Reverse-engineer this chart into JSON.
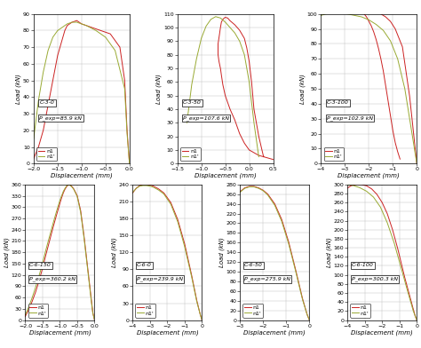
{
  "subplots": [
    {
      "label": "C-3-0",
      "p_exp": "P_exp=85.9 kN",
      "xlim": [
        -2,
        0
      ],
      "xticks": [
        -2,
        -1.5,
        -1,
        -0.5,
        0
      ],
      "ylim": [
        0,
        90
      ],
      "yticks": [
        0,
        10,
        20,
        30,
        40,
        50,
        60,
        70,
        80,
        90
      ],
      "n1_x": [
        0,
        -0.05,
        -0.1,
        -0.2,
        -0.4,
        -0.6,
        -0.8,
        -0.9,
        -1.0,
        -1.05,
        -1.1,
        -1.15,
        -1.2,
        -1.25,
        -1.3,
        -1.35,
        -1.4,
        -1.5,
        -1.6,
        -1.7,
        -1.8,
        -1.9,
        -2.0
      ],
      "n1_y": [
        0,
        20,
        50,
        70,
        78,
        80,
        82,
        83,
        84,
        85,
        86,
        85.5,
        85,
        84,
        83,
        80,
        75,
        65,
        50,
        35,
        20,
        10,
        3
      ],
      "n1p_x": [
        0,
        -0.05,
        -0.1,
        -0.3,
        -0.5,
        -0.7,
        -0.9,
        -1.0,
        -1.1,
        -1.2,
        -1.3,
        -1.4,
        -1.5,
        -1.6,
        -1.7,
        -1.8,
        -1.9,
        -2.0
      ],
      "n1p_y": [
        0,
        18,
        45,
        68,
        76,
        80,
        83,
        84,
        85,
        85,
        84,
        82,
        80,
        76,
        68,
        55,
        38,
        15
      ]
    },
    {
      "label": "C-3-50",
      "p_exp": "P_exp=107.6 kN",
      "xlim": [
        -1.5,
        0.5
      ],
      "xticks": [
        -1.5,
        -1,
        -0.5,
        0,
        0.5
      ],
      "ylim": [
        0,
        110
      ],
      "yticks": [
        0,
        10,
        20,
        30,
        40,
        50,
        60,
        70,
        80,
        90,
        100,
        110
      ],
      "n1_x": [
        0.3,
        0.2,
        0.1,
        0.05,
        0,
        -0.05,
        -0.1,
        -0.2,
        -0.3,
        -0.4,
        -0.45,
        -0.5,
        -0.52,
        -0.55,
        -0.58,
        -0.6,
        -0.62,
        -0.65,
        -0.65,
        -0.63,
        -0.6,
        -0.58,
        -0.55,
        -0.5,
        -0.4,
        -0.3,
        -0.2,
        -0.1,
        0,
        0.1,
        0.2,
        0.3,
        0.4,
        0.5
      ],
      "n1_y": [
        5,
        20,
        40,
        60,
        75,
        85,
        92,
        98,
        102,
        105,
        107,
        107.5,
        107,
        106,
        104,
        100,
        95,
        88,
        80,
        75,
        70,
        65,
        58,
        50,
        40,
        32,
        22,
        15,
        10,
        8,
        6,
        5,
        4,
        3
      ],
      "n1p_x": [
        0.2,
        0.1,
        0.0,
        -0.1,
        -0.2,
        -0.3,
        -0.4,
        -0.5,
        -0.6,
        -0.7,
        -0.8,
        -0.9,
        -1.0,
        -1.1,
        -1.2,
        -1.3
      ],
      "n1p_y": [
        5,
        30,
        60,
        80,
        90,
        96,
        100,
        104,
        107,
        108,
        106,
        101,
        92,
        77,
        58,
        30
      ]
    },
    {
      "label": "C-3-100",
      "p_exp": "P_exp=102.9 kN",
      "xlim": [
        -4,
        0
      ],
      "xticks": [
        -4,
        -3,
        -2,
        -1,
        0
      ],
      "ylim": [
        0,
        100
      ],
      "yticks": [
        0,
        10,
        20,
        30,
        40,
        50,
        60,
        70,
        80,
        90,
        100
      ],
      "n1_x": [
        0,
        -0.1,
        -0.3,
        -0.6,
        -0.9,
        -1.1,
        -1.3,
        -1.5,
        -1.7,
        -1.9,
        -2.0,
        -2.1,
        -2.2,
        -2.3,
        -2.25,
        -2.2,
        -2.1,
        -2.0,
        -1.9,
        -1.8,
        -1.7,
        -1.6,
        -1.5,
        -1.4,
        -1.3,
        -1.2,
        -1.1,
        -1.0,
        -0.9,
        -0.8,
        -0.7
      ],
      "n1_y": [
        0,
        15,
        45,
        78,
        90,
        95,
        98,
        100,
        101,
        102,
        102.5,
        103,
        103,
        102,
        101,
        100,
        98,
        95,
        92,
        88,
        83,
        77,
        70,
        62,
        52,
        42,
        32,
        22,
        14,
        8,
        3
      ],
      "n1p_x": [
        0,
        -0.2,
        -0.5,
        -0.8,
        -1.1,
        -1.4,
        -1.7,
        -2.0,
        -2.3,
        -2.6,
        -2.9,
        -3.2,
        -3.5,
        -3.8,
        -4.0
      ],
      "n1p_y": [
        0,
        20,
        50,
        70,
        82,
        89,
        93,
        96,
        98,
        99,
        100,
        100.5,
        101,
        100,
        99
      ]
    },
    {
      "label": "C-6-150",
      "p_exp": "P_exp=360.2 kN",
      "xlim": [
        -2,
        0
      ],
      "xticks": [
        -2,
        -1.5,
        -1,
        -0.5,
        0
      ],
      "ylim": [
        0,
        360
      ],
      "yticks": [
        0,
        30,
        60,
        90,
        120,
        150,
        180,
        210,
        240,
        270,
        300,
        330,
        360
      ],
      "n1_x": [
        0,
        -0.05,
        -0.1,
        -0.2,
        -0.3,
        -0.4,
        -0.5,
        -0.6,
        -0.65,
        -0.7,
        -0.72,
        -0.75,
        -0.78,
        -0.8,
        -0.85,
        -0.9,
        -0.95,
        -1.0,
        -1.1,
        -1.2,
        -1.3,
        -1.4,
        -1.5,
        -1.6,
        -1.7,
        -1.8,
        -1.9,
        -2.0
      ],
      "n1_y": [
        0,
        20,
        60,
        140,
        220,
        290,
        330,
        348,
        354,
        358,
        360,
        359,
        357,
        355,
        348,
        338,
        325,
        310,
        278,
        245,
        210,
        175,
        138,
        105,
        75,
        50,
        28,
        10
      ],
      "n1p_x": [
        0,
        -0.05,
        -0.1,
        -0.2,
        -0.3,
        -0.4,
        -0.5,
        -0.6,
        -0.65,
        -0.7,
        -0.72,
        -0.75,
        -0.78,
        -0.8,
        -0.85,
        -0.9,
        -0.95,
        -1.0,
        -1.1,
        -1.2,
        -1.3,
        -1.4,
        -1.5,
        -1.6,
        -1.7,
        -1.8,
        -1.9,
        -2.0
      ],
      "n1p_y": [
        0,
        18,
        55,
        135,
        215,
        285,
        328,
        347,
        353,
        357,
        359,
        359,
        358,
        357,
        350,
        342,
        330,
        318,
        288,
        256,
        222,
        188,
        152,
        118,
        88,
        60,
        35,
        14
      ]
    },
    {
      "label": "C-6-0",
      "p_exp": "P_exp=239.9 kN",
      "xlim": [
        -4,
        0
      ],
      "xticks": [
        -4,
        -3,
        -2,
        -1,
        0
      ],
      "ylim": [
        0,
        240
      ],
      "yticks": [
        0,
        30,
        60,
        90,
        120,
        150,
        180,
        210,
        240
      ],
      "n1_x": [
        0,
        -0.1,
        -0.3,
        -0.6,
        -1.0,
        -1.4,
        -1.8,
        -2.2,
        -2.5,
        -2.8,
        -3.0,
        -3.2,
        -3.4,
        -3.6,
        -3.8,
        -4.0
      ],
      "n1_y": [
        0,
        10,
        35,
        80,
        135,
        178,
        208,
        225,
        232,
        237,
        239,
        240,
        240,
        238,
        233,
        225
      ],
      "n1p_x": [
        0,
        -0.1,
        -0.3,
        -0.6,
        -1.0,
        -1.4,
        -1.8,
        -2.2,
        -2.5,
        -2.8,
        -3.0,
        -3.2,
        -3.4,
        -3.6,
        -3.8,
        -4.0
      ],
      "n1p_y": [
        0,
        10,
        33,
        77,
        130,
        174,
        205,
        223,
        230,
        235,
        237,
        238,
        238,
        237,
        233,
        226
      ]
    },
    {
      "label": "C-6-50",
      "p_exp": "P_exp=275.9 kN",
      "xlim": [
        -3,
        0
      ],
      "xticks": [
        -3,
        -2,
        -1,
        0
      ],
      "ylim": [
        0,
        280
      ],
      "yticks": [
        0,
        20,
        40,
        60,
        80,
        100,
        120,
        140,
        160,
        180,
        200,
        220,
        240,
        260,
        280
      ],
      "n1_x": [
        0,
        -0.1,
        -0.3,
        -0.6,
        -0.9,
        -1.2,
        -1.5,
        -1.8,
        -2.0,
        -2.2,
        -2.4,
        -2.6,
        -2.8,
        -3.0
      ],
      "n1_y": [
        0,
        12,
        45,
        105,
        162,
        208,
        240,
        260,
        268,
        273,
        276,
        276,
        273,
        265
      ],
      "n1p_x": [
        0,
        -0.1,
        -0.3,
        -0.6,
        -0.9,
        -1.2,
        -1.5,
        -1.8,
        -2.0,
        -2.2,
        -2.4,
        -2.6,
        -2.8,
        -3.0
      ],
      "n1p_y": [
        0,
        12,
        43,
        102,
        158,
        204,
        237,
        258,
        267,
        272,
        275,
        275,
        272,
        264
      ]
    },
    {
      "label": "C-6-100",
      "p_exp": "P_exp=300.3 kN",
      "xlim": [
        -4,
        0
      ],
      "xticks": [
        -4,
        -3,
        -2,
        -1,
        0
      ],
      "ylim": [
        0,
        300
      ],
      "yticks": [
        0,
        20,
        40,
        60,
        80,
        100,
        120,
        140,
        160,
        180,
        200,
        220,
        240,
        260,
        280,
        300
      ],
      "n1_x": [
        0,
        -0.1,
        -0.3,
        -0.7,
        -1.1,
        -1.4,
        -1.7,
        -2.0,
        -2.3,
        -2.6,
        -2.9,
        -3.2,
        -3.5,
        -3.8,
        -4.0
      ],
      "n1_y": [
        0,
        10,
        38,
        95,
        158,
        200,
        235,
        260,
        278,
        290,
        297,
        300,
        300,
        297,
        292
      ],
      "n1p_x": [
        0,
        -0.2,
        -0.5,
        -0.9,
        -1.3,
        -1.7,
        -2.1,
        -2.5,
        -2.9,
        -3.3,
        -3.7,
        -4.0
      ],
      "n1p_y": [
        0,
        20,
        60,
        115,
        170,
        215,
        250,
        272,
        285,
        293,
        298,
        299
      ]
    }
  ],
  "n1_color": "#cc2222",
  "n1p_color": "#99aa33",
  "grid_color": "#bbbbbb",
  "bg_color": "#ffffff",
  "xlabel": "Displacement (mm)",
  "ylabel": "Load (kN)",
  "label_fontsize": 5.0,
  "tick_fontsize": 4.5,
  "annot_fontsize": 4.5,
  "legend_fontsize": 4.5
}
